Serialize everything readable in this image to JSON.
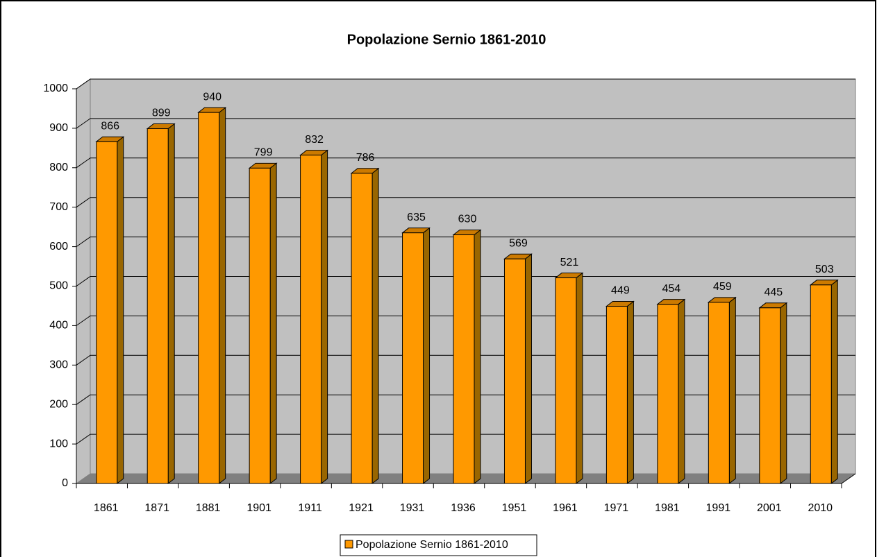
{
  "chart_data": {
    "type": "bar3d",
    "title": "Popolazione Sernio 1861-2010",
    "categories": [
      "1861",
      "1871",
      "1881",
      "1901",
      "1911",
      "1921",
      "1931",
      "1936",
      "1951",
      "1961",
      "1971",
      "1981",
      "1991",
      "2001",
      "2010"
    ],
    "series": [
      {
        "name": "Popolazione Sernio 1861-2010",
        "color": "#ff9900",
        "values": [
          866,
          899,
          940,
          799,
          832,
          786,
          635,
          630,
          569,
          521,
          449,
          454,
          459,
          445,
          503
        ]
      }
    ],
    "ylim": [
      0,
      1000
    ],
    "yticks": [
      0,
      100,
      200,
      300,
      400,
      500,
      600,
      700,
      800,
      900,
      1000
    ],
    "grid": true,
    "legend": "bottom"
  }
}
